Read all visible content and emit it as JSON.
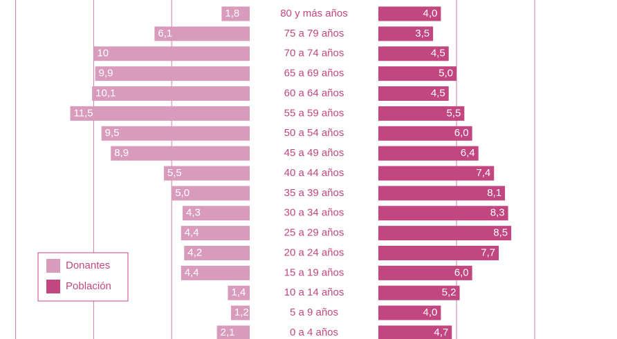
{
  "chart_data": {
    "type": "pyramid",
    "categories": [
      "80 y más años",
      "75 a 79 años",
      "70 a 74 años",
      "65 a 69 años",
      "60 a 64 años",
      "55 a 59 años",
      "50 a 54 años",
      "45 a 49 años",
      "40 a 44 años",
      "35 a 39 años",
      "30 a 34 años",
      "25 a 29 años",
      "20 a 24 años",
      "15 a 19 años",
      "10 a 14 años",
      "5 a 9 años",
      "0 a 4 años"
    ],
    "series": [
      {
        "name": "Donantes",
        "color": "#d99bbb",
        "side": "left",
        "values": [
          1.8,
          6.1,
          10,
          9.9,
          10.1,
          11.5,
          9.5,
          8.9,
          5.5,
          5.0,
          4.3,
          4.4,
          4.2,
          4.4,
          1.4,
          1.2,
          2.1
        ],
        "value_labels": [
          "1,8",
          "6,1",
          "10",
          "9,9",
          "10,1",
          "11,5",
          "9,5",
          "8,9",
          "5,5",
          "5,0",
          "4,3",
          "4,4",
          "4,2",
          "4,4",
          "1,4",
          "1,2",
          "2,1"
        ]
      },
      {
        "name": "Población",
        "color": "#c2467f",
        "side": "right",
        "values": [
          4.0,
          3.5,
          4.5,
          5.0,
          4.5,
          5.5,
          6.0,
          6.4,
          7.4,
          8.1,
          8.3,
          8.5,
          7.7,
          6.0,
          5.2,
          4.0,
          4.7
        ],
        "value_labels": [
          "4,0",
          "3,5",
          "4,5",
          "5,0",
          "4,5",
          "5,5",
          "6,0",
          "6,4",
          "7,4",
          "8,1",
          "8,3",
          "8,5",
          "7,7",
          "6,0",
          "5,2",
          "4,0",
          "4,7"
        ]
      }
    ],
    "xlim": [
      0,
      16
    ],
    "xticks": [
      5,
      10,
      15
    ],
    "x2lim": [
      0,
      15
    ],
    "x2ticks": [
      5,
      10
    ],
    "grid": true,
    "legend": "lower left"
  }
}
